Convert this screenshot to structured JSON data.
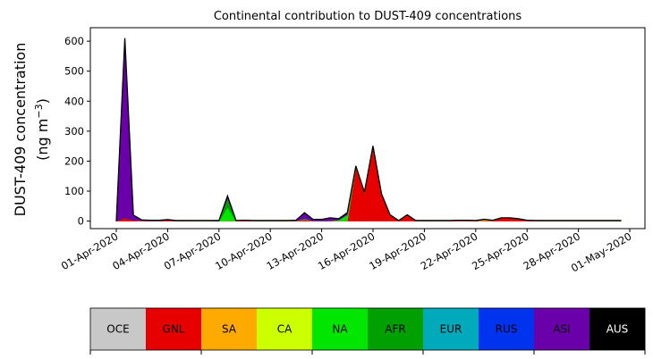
{
  "chart_data": {
    "type": "area",
    "stacked": true,
    "title": "Continental contribution to DUST-409 concentrations",
    "ylabel_line1": "DUST-409 concentration",
    "ylabel_line2": "(ng m",
    "ylabel_unit_exp": "−3",
    "ylabel_line2_end": ")",
    "xlabel": "",
    "ylim": [
      -25,
      645
    ],
    "y_ticks": [
      "0",
      "100",
      "200",
      "300",
      "400",
      "500",
      "600"
    ],
    "x_ticks": [
      "01-Apr-2020",
      "04-Apr-2020",
      "07-Apr-2020",
      "10-Apr-2020",
      "13-Apr-2020",
      "16-Apr-2020",
      "19-Apr-2020",
      "22-Apr-2020",
      "25-Apr-2020",
      "28-Apr-2020",
      "01-May-2020"
    ],
    "grid": false,
    "legend_position": "bottom colorbar",
    "x_days": [
      0,
      0.5,
      1,
      1.5,
      2,
      2.5,
      3,
      3.5,
      4,
      4.5,
      5,
      5.5,
      6,
      6.5,
      7,
      7.5,
      8,
      8.5,
      9,
      9.5,
      10,
      10.5,
      11,
      11.5,
      12,
      12.5,
      13,
      13.5,
      14,
      14.5,
      15,
      15.5,
      16,
      16.5,
      17,
      17.5,
      18,
      18.5,
      19,
      19.5,
      20,
      20.5,
      21,
      21.5,
      22,
      22.5,
      23,
      23.5,
      24,
      24.5,
      25,
      25.5,
      26,
      26.5,
      27,
      27.5,
      28,
      28.5,
      29,
      29.5
    ],
    "series": [
      {
        "name": "OCE",
        "color": "#c8c8c8",
        "values": [
          0,
          0,
          0,
          0,
          0,
          0,
          0,
          0,
          0,
          0,
          0,
          0,
          0,
          0,
          0,
          0,
          0,
          0,
          0,
          0,
          0,
          0,
          0,
          0,
          0,
          0,
          0,
          0,
          0,
          0,
          0,
          0,
          0,
          0,
          0,
          0,
          0,
          0,
          0,
          0,
          0,
          0,
          0,
          0,
          0,
          0,
          0,
          0,
          0,
          0,
          0,
          0,
          0,
          0,
          0,
          0,
          0,
          0,
          0,
          0
        ]
      },
      {
        "name": "GNL",
        "color": "#e60000",
        "values": [
          0,
          10,
          3,
          2,
          1,
          1,
          3,
          1,
          1,
          1,
          1,
          1,
          0,
          1,
          1,
          2,
          1,
          1,
          1,
          1,
          1,
          1,
          5,
          1,
          1,
          1,
          1,
          1,
          180,
          95,
          245,
          90,
          20,
          1,
          20,
          1,
          1,
          1,
          1,
          1,
          2,
          2,
          1,
          2,
          2,
          10,
          10,
          7,
          2,
          1,
          1,
          1,
          1,
          1,
          1,
          1,
          1,
          1,
          1,
          1
        ]
      },
      {
        "name": "SA",
        "color": "#ffaa00",
        "values": [
          0,
          0,
          0,
          0,
          0,
          0,
          0,
          0,
          0,
          0,
          0,
          0,
          0,
          0,
          0,
          0,
          0,
          0,
          0,
          0,
          0,
          0,
          0,
          0,
          0,
          0,
          0,
          0,
          0,
          0,
          0,
          0,
          0,
          0,
          0,
          0,
          0,
          0,
          0,
          0,
          0,
          0,
          0,
          0,
          0,
          0,
          0,
          0,
          0,
          0,
          0,
          0,
          0,
          0,
          0,
          0,
          0,
          0,
          0,
          0
        ]
      },
      {
        "name": "CA",
        "color": "#ccff00",
        "values": [
          0,
          0,
          0,
          0,
          0,
          0,
          0,
          0,
          0,
          0,
          0,
          0,
          0,
          0,
          0,
          0,
          0,
          0,
          0,
          0,
          0,
          0,
          0,
          0,
          0,
          0,
          0,
          0,
          0,
          0,
          0,
          0,
          0,
          0,
          0,
          0,
          0,
          0,
          0,
          0,
          0,
          0,
          0,
          3,
          0,
          0,
          0,
          0,
          0,
          0,
          0,
          0,
          0,
          0,
          0,
          0,
          0,
          0,
          0,
          0
        ]
      },
      {
        "name": "NA",
        "color": "#00e600",
        "values": [
          0,
          0,
          0,
          0,
          0,
          0,
          0,
          0,
          0,
          0,
          0,
          0,
          0,
          45,
          0,
          0,
          0,
          0,
          0,
          0,
          0,
          0,
          3,
          0,
          0,
          0,
          3,
          20,
          2,
          0,
          0,
          0,
          0,
          0,
          0,
          0,
          0,
          0,
          0,
          0,
          0,
          0,
          0,
          0,
          0,
          0,
          0,
          0,
          0,
          0,
          0,
          0,
          0,
          0,
          0,
          0,
          0,
          0,
          0,
          0
        ]
      },
      {
        "name": "AFR",
        "color": "#00a000",
        "values": [
          0,
          0,
          0,
          0,
          0,
          0,
          0,
          0,
          0,
          0,
          0,
          0,
          0,
          30,
          0,
          0,
          0,
          0,
          0,
          0,
          0,
          0,
          0,
          0,
          0,
          0,
          0,
          0,
          0,
          0,
          0,
          0,
          0,
          0,
          0,
          0,
          0,
          0,
          0,
          0,
          0,
          0,
          0,
          0,
          0,
          0,
          0,
          0,
          0,
          0,
          0,
          0,
          0,
          0,
          0,
          0,
          0,
          0,
          0,
          0
        ]
      },
      {
        "name": "EUR",
        "color": "#00aabb",
        "values": [
          0,
          0,
          0,
          0,
          0,
          0,
          0,
          0,
          0,
          0,
          0,
          0,
          0,
          0,
          0,
          0,
          0,
          0,
          0,
          0,
          0,
          0,
          0,
          0,
          0,
          0,
          0,
          0,
          0,
          0,
          0,
          0,
          0,
          0,
          0,
          0,
          0,
          0,
          0,
          0,
          0,
          0,
          0,
          0,
          0,
          0,
          0,
          0,
          0,
          0,
          0,
          0,
          0,
          0,
          0,
          0,
          0,
          0,
          0,
          0
        ]
      },
      {
        "name": "RUS",
        "color": "#0033ee",
        "values": [
          0,
          0,
          0,
          0,
          0,
          0,
          0,
          0,
          0,
          0,
          0,
          0,
          0,
          0,
          0,
          0,
          0,
          0,
          0,
          0,
          0,
          0,
          0,
          0,
          0,
          0,
          0,
          0,
          0,
          0,
          0,
          0,
          0,
          0,
          0,
          0,
          0,
          0,
          0,
          0,
          0,
          0,
          0,
          0,
          0,
          0,
          0,
          0,
          0,
          0,
          0,
          0,
          0,
          0,
          0,
          0,
          0,
          0,
          0,
          0
        ]
      },
      {
        "name": "ASI",
        "color": "#6a00aa",
        "values": [
          0,
          600,
          17,
          2,
          2,
          2,
          2,
          1,
          1,
          1,
          1,
          1,
          2,
          8,
          1,
          1,
          1,
          1,
          1,
          1,
          1,
          2,
          20,
          5,
          5,
          10,
          4,
          7,
          2,
          2,
          6,
          1,
          1,
          1,
          1,
          1,
          1,
          1,
          1,
          1,
          1,
          1,
          1,
          1,
          1,
          1,
          1,
          1,
          1,
          1,
          1,
          1,
          1,
          1,
          1,
          1,
          1,
          1,
          1,
          1
        ]
      },
      {
        "name": "AUS",
        "color": "#000000",
        "values": [
          0,
          0,
          0,
          0,
          0,
          0,
          0,
          0,
          0,
          0,
          0,
          0,
          0,
          0,
          0,
          0,
          0,
          0,
          0,
          0,
          0,
          0,
          0,
          0,
          0,
          0,
          0,
          0,
          0,
          0,
          0,
          0,
          0,
          0,
          0,
          0,
          0,
          0,
          0,
          0,
          0,
          0,
          0,
          0,
          0,
          0,
          0,
          0,
          0,
          0,
          0,
          0,
          0,
          0,
          0,
          0,
          0,
          0,
          0,
          0
        ]
      }
    ],
    "legend_text_colors": [
      "#000000",
      "#000000",
      "#000000",
      "#000000",
      "#000000",
      "#000000",
      "#000000",
      "#000000",
      "#000000",
      "#ffffff"
    ]
  }
}
